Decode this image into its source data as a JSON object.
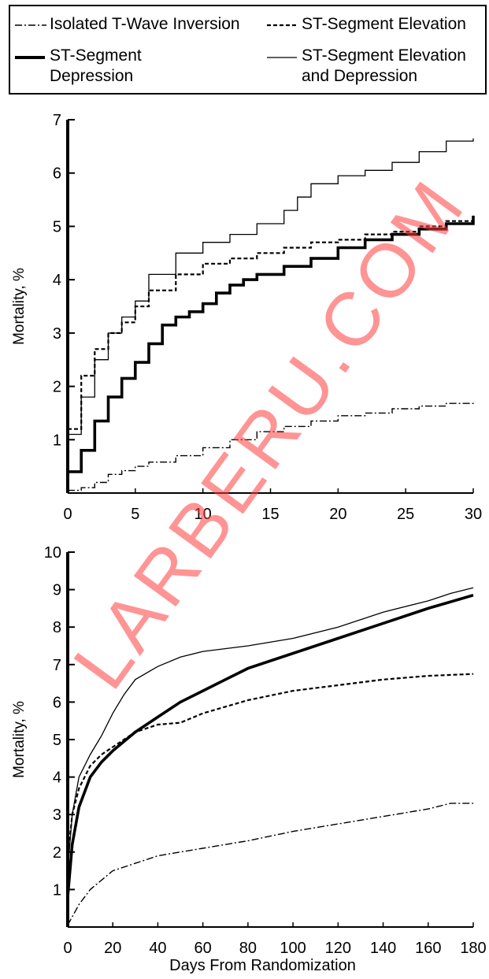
{
  "legend": {
    "items": [
      {
        "label": "Isolated T-Wave Inversion",
        "style": "dash-dot-thin"
      },
      {
        "label": "ST-Segment Elevation",
        "style": "dashed"
      },
      {
        "label": "ST-Segment\nDepression",
        "style": "thick"
      },
      {
        "label": "ST-Segment Elevation\nand Depression",
        "style": "thin"
      }
    ]
  },
  "watermark": "LARBERU.COM",
  "chart_data": [
    {
      "type": "line",
      "step": true,
      "xlabel": "",
      "ylabel": "Mortality, %",
      "xlim": [
        0,
        30
      ],
      "ylim": [
        0,
        7
      ],
      "xticks": [
        0,
        5,
        10,
        15,
        20,
        25,
        30
      ],
      "yticks": [
        1,
        2,
        3,
        4,
        5,
        6,
        7
      ],
      "series": [
        {
          "name": "Isolated T-Wave Inversion",
          "style": "dash-dot-thin",
          "x": [
            0,
            1,
            2,
            3,
            4,
            5,
            6,
            8,
            10,
            12,
            14,
            16,
            18,
            20,
            22,
            24,
            26,
            28,
            30
          ],
          "y": [
            0.05,
            0.1,
            0.2,
            0.35,
            0.42,
            0.5,
            0.58,
            0.7,
            0.85,
            1.0,
            1.15,
            1.25,
            1.35,
            1.45,
            1.5,
            1.58,
            1.63,
            1.68,
            1.7
          ]
        },
        {
          "name": "ST-Segment Elevation",
          "style": "dashed",
          "x": [
            0,
            1,
            2,
            3,
            4,
            5,
            6,
            8,
            10,
            12,
            14,
            16,
            18,
            20,
            22,
            24,
            26,
            28,
            30
          ],
          "y": [
            1.2,
            2.2,
            2.7,
            3.0,
            3.2,
            3.5,
            3.8,
            4.1,
            4.3,
            4.4,
            4.5,
            4.6,
            4.7,
            4.75,
            4.85,
            4.9,
            5.0,
            5.1,
            5.2
          ]
        },
        {
          "name": "ST-Segment Depression",
          "style": "thick",
          "x": [
            0,
            1,
            2,
            3,
            4,
            5,
            6,
            7,
            8,
            9,
            10,
            11,
            12,
            13,
            14,
            16,
            18,
            20,
            22,
            24,
            26,
            28,
            30
          ],
          "y": [
            0.4,
            0.8,
            1.35,
            1.8,
            2.15,
            2.45,
            2.8,
            3.15,
            3.3,
            3.4,
            3.55,
            3.75,
            3.9,
            4.0,
            4.1,
            4.25,
            4.4,
            4.6,
            4.75,
            4.85,
            4.95,
            5.05,
            5.2
          ]
        },
        {
          "name": "ST-Segment Elevation and Depression",
          "style": "thin",
          "x": [
            0,
            1,
            2,
            3,
            4,
            5,
            6,
            8,
            10,
            12,
            14,
            16,
            17,
            18,
            20,
            22,
            24,
            26,
            28,
            30
          ],
          "y": [
            1.1,
            1.8,
            2.5,
            3.0,
            3.3,
            3.6,
            4.1,
            4.5,
            4.7,
            4.85,
            5.05,
            5.3,
            5.55,
            5.8,
            5.95,
            6.05,
            6.2,
            6.4,
            6.6,
            6.65
          ]
        }
      ]
    },
    {
      "type": "line",
      "step": false,
      "xlabel": "Days From Randomization",
      "ylabel": "Mortality, %",
      "xlim": [
        0,
        180
      ],
      "ylim": [
        0,
        10
      ],
      "xticks": [
        0,
        20,
        40,
        60,
        80,
        100,
        120,
        140,
        160,
        180
      ],
      "yticks": [
        1,
        2,
        3,
        4,
        5,
        6,
        7,
        8,
        9,
        10
      ],
      "series": [
        {
          "name": "Isolated T-Wave Inversion",
          "style": "dash-dot-thin",
          "x": [
            0,
            5,
            10,
            20,
            30,
            40,
            60,
            80,
            100,
            120,
            140,
            160,
            170,
            180
          ],
          "y": [
            0.05,
            0.6,
            1.0,
            1.5,
            1.7,
            1.9,
            2.1,
            2.3,
            2.55,
            2.75,
            2.95,
            3.15,
            3.3,
            3.3
          ]
        },
        {
          "name": "ST-Segment Elevation",
          "style": "dashed",
          "x": [
            0,
            2,
            5,
            10,
            15,
            20,
            30,
            40,
            50,
            60,
            80,
            100,
            120,
            140,
            160,
            180
          ],
          "y": [
            1.8,
            3.0,
            3.7,
            4.3,
            4.6,
            4.8,
            5.2,
            5.4,
            5.45,
            5.7,
            6.05,
            6.3,
            6.45,
            6.6,
            6.7,
            6.75
          ]
        },
        {
          "name": "ST-Segment Depression",
          "style": "thick",
          "x": [
            0,
            2,
            5,
            10,
            15,
            20,
            30,
            40,
            50,
            60,
            70,
            80,
            100,
            120,
            140,
            160,
            180
          ],
          "y": [
            0.8,
            2.2,
            3.2,
            4.0,
            4.4,
            4.7,
            5.2,
            5.6,
            6.0,
            6.3,
            6.6,
            6.9,
            7.3,
            7.7,
            8.1,
            8.5,
            8.85
          ]
        },
        {
          "name": "ST-Segment Elevation and Depression",
          "style": "thin",
          "x": [
            0,
            2,
            5,
            10,
            15,
            20,
            25,
            30,
            40,
            50,
            60,
            80,
            100,
            120,
            140,
            160,
            170,
            180
          ],
          "y": [
            1.5,
            3.0,
            4.0,
            4.6,
            5.1,
            5.7,
            6.2,
            6.6,
            6.95,
            7.2,
            7.35,
            7.5,
            7.7,
            8.0,
            8.4,
            8.7,
            8.9,
            9.05
          ]
        }
      ]
    }
  ]
}
